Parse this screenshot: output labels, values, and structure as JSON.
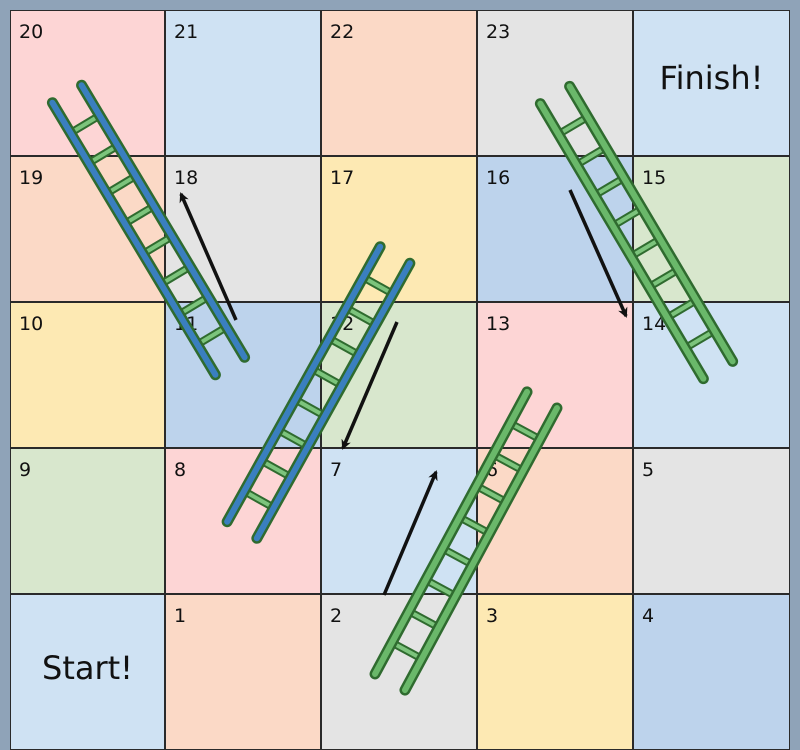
{
  "board": {
    "start_label": "Start!",
    "finish_label": "Finish!",
    "rows": [
      [
        {
          "label": "20",
          "color": "#fdd5d5"
        },
        {
          "label": "21",
          "color": "#cfe2f3"
        },
        {
          "label": "22",
          "color": "#fbd9c6"
        },
        {
          "label": "23",
          "color": "#e4e4e4"
        },
        {
          "label": "",
          "color": "#cfe2f3",
          "special": "finish"
        }
      ],
      [
        {
          "label": "19",
          "color": "#fbd9c6"
        },
        {
          "label": "18",
          "color": "#e4e4e4"
        },
        {
          "label": "17",
          "color": "#fde9b3"
        },
        {
          "label": "16",
          "color": "#bdd3ec"
        },
        {
          "label": "15",
          "color": "#d8e7cd"
        }
      ],
      [
        {
          "label": "10",
          "color": "#fde9b3"
        },
        {
          "label": "11",
          "color": "#bdd3ec"
        },
        {
          "label": "12",
          "color": "#d8e7cd"
        },
        {
          "label": "13",
          "color": "#fdd5d5"
        },
        {
          "label": "14",
          "color": "#cfe2f3"
        }
      ],
      [
        {
          "label": "9",
          "color": "#d8e7cd"
        },
        {
          "label": "8",
          "color": "#fdd5d5"
        },
        {
          "label": "7",
          "color": "#cfe2f3"
        },
        {
          "label": "6",
          "color": "#fbd9c6"
        },
        {
          "label": "5",
          "color": "#e4e4e4"
        }
      ],
      [
        {
          "label": "",
          "color": "#cfe2f3",
          "special": "start"
        },
        {
          "label": "1",
          "color": "#fbd9c6"
        },
        {
          "label": "2",
          "color": "#e4e4e4"
        },
        {
          "label": "3",
          "color": "#fde9b3"
        },
        {
          "label": "4",
          "color": "#bdd3ec"
        }
      ]
    ]
  },
  "ladders": [
    {
      "name": "ladder-11-to-20",
      "rail_color": "#3a7fbf"
    },
    {
      "name": "ladder-7-to-12",
      "rail_color": "#3a7fbf"
    },
    {
      "name": "ladder-2-to-6",
      "rail_color": "#6ab86a"
    },
    {
      "name": "ladder-14-to-finish",
      "rail_color": "#6ab86a"
    }
  ],
  "arrows": [
    {
      "name": "arrow-up-to-18",
      "direction": "up"
    },
    {
      "name": "arrow-down-to-7",
      "direction": "down"
    },
    {
      "name": "arrow-up-to-6",
      "direction": "up"
    },
    {
      "name": "arrow-down-to-14",
      "direction": "down"
    }
  ]
}
